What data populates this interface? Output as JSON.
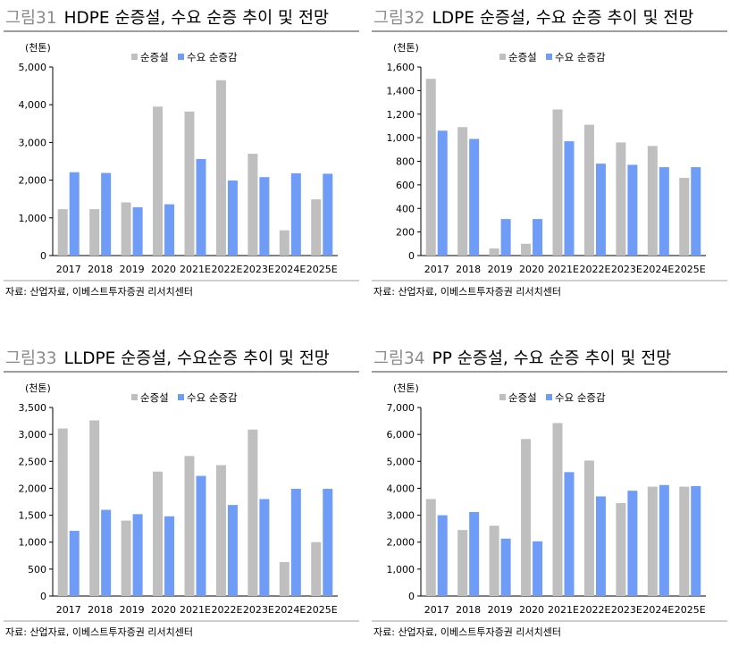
{
  "colors": {
    "production": "#bfbfbf",
    "demand": "#6f9cf7",
    "title_num": "#8a8a8a",
    "axis": "#000000"
  },
  "chart_data": [
    {
      "type": "bar",
      "figure_label": "그림31",
      "title": "HDPE 순증설, 수요 순증 추이 및 전망",
      "unit": "(천톤)",
      "categories": [
        "2017",
        "2018",
        "2019",
        "2020",
        "2021E",
        "2022E",
        "2023E",
        "2024E",
        "2025E"
      ],
      "series": [
        {
          "name": "순증설",
          "values": [
            1230,
            1230,
            1410,
            3950,
            3820,
            4650,
            2700,
            670,
            1490
          ]
        },
        {
          "name": "수요 순증감",
          "values": [
            2210,
            2190,
            1280,
            1360,
            2560,
            1990,
            2080,
            2180,
            2170
          ]
        }
      ],
      "ylim": [
        0,
        5000
      ],
      "yticks": [
        0,
        1000,
        2000,
        3000,
        4000,
        5000
      ],
      "ytick_labels": [
        "0",
        "1,000",
        "2,000",
        "3,000",
        "4,000",
        "5,000"
      ],
      "source": "자료: 산업자료, 이베스트투자증권 리서치센터"
    },
    {
      "type": "bar",
      "figure_label": "그림32",
      "title": "LDPE 순증설, 수요 순증 추이 및 전망",
      "unit": "(천톤)",
      "categories": [
        "2017",
        "2018",
        "2019",
        "2020",
        "2021E",
        "2022E",
        "2023E",
        "2024E",
        "2025E"
      ],
      "series": [
        {
          "name": "순증설",
          "values": [
            1500,
            1090,
            60,
            100,
            1240,
            1110,
            960,
            930,
            660
          ]
        },
        {
          "name": "수요 순증감",
          "values": [
            1060,
            990,
            310,
            310,
            970,
            780,
            770,
            750,
            750
          ]
        }
      ],
      "ylim": [
        0,
        1600
      ],
      "yticks": [
        0,
        200,
        400,
        600,
        800,
        1000,
        1200,
        1400,
        1600
      ],
      "ytick_labels": [
        "0",
        "200",
        "400",
        "600",
        "800",
        "1,000",
        "1,200",
        "1,400",
        "1,600"
      ],
      "source": "자료: 산업자료, 이베스트투자증권 리서치센터"
    },
    {
      "type": "bar",
      "figure_label": "그림33",
      "title": "LLDPE 순증설, 수요순증 추이 및 전망",
      "unit": "(천톤)",
      "categories": [
        "2017",
        "2018",
        "2019",
        "2020",
        "2021E",
        "2022E",
        "2023E",
        "2024E",
        "2025E"
      ],
      "series": [
        {
          "name": "순증설",
          "values": [
            3110,
            3260,
            1400,
            2310,
            2600,
            2430,
            3090,
            630,
            1000
          ]
        },
        {
          "name": "수요 순증감",
          "values": [
            1210,
            1600,
            1520,
            1480,
            2230,
            1690,
            1800,
            1990,
            1990
          ]
        }
      ],
      "ylim": [
        0,
        3500
      ],
      "yticks": [
        0,
        500,
        1000,
        1500,
        2000,
        2500,
        3000,
        3500
      ],
      "ytick_labels": [
        "0",
        "500",
        "1,000",
        "1,500",
        "2,000",
        "2,500",
        "3,000",
        "3,500"
      ],
      "source": "자료: 산업자료, 이베스트투자증권 리서치센터"
    },
    {
      "type": "bar",
      "figure_label": "그림34",
      "title": "PP 순증설, 수요 순증 추이 및 전망",
      "unit": "(천톤)",
      "categories": [
        "2017",
        "2018",
        "2019",
        "2020",
        "2021E",
        "2022E",
        "2023E",
        "2024E",
        "2025E"
      ],
      "series": [
        {
          "name": "순증설",
          "values": [
            3600,
            2450,
            2610,
            5830,
            6420,
            5030,
            3450,
            4060,
            4060
          ]
        },
        {
          "name": "수요 순증감",
          "values": [
            3000,
            3120,
            2130,
            2030,
            4600,
            3700,
            3910,
            4120,
            4080
          ]
        }
      ],
      "ylim": [
        0,
        7000
      ],
      "yticks": [
        0,
        1000,
        2000,
        3000,
        4000,
        5000,
        6000,
        7000
      ],
      "ytick_labels": [
        "0",
        "1,000",
        "2,000",
        "3,000",
        "4,000",
        "5,000",
        "6,000",
        "7,000"
      ],
      "source": "자료: 산업자료, 이베스트투자증권 리서치센터"
    }
  ]
}
